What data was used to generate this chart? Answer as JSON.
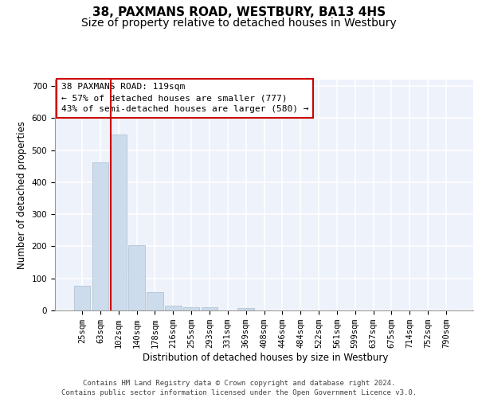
{
  "title": "38, PAXMANS ROAD, WESTBURY, BA13 4HS",
  "subtitle": "Size of property relative to detached houses in Westbury",
  "xlabel": "Distribution of detached houses by size in Westbury",
  "ylabel": "Number of detached properties",
  "bar_color": "#ccdcec",
  "bar_edgecolor": "#aabccc",
  "background_color": "#eef2fb",
  "grid_color": "#ffffff",
  "categories": [
    "25sqm",
    "63sqm",
    "102sqm",
    "140sqm",
    "178sqm",
    "216sqm",
    "255sqm",
    "293sqm",
    "331sqm",
    "369sqm",
    "408sqm",
    "446sqm",
    "484sqm",
    "522sqm",
    "561sqm",
    "599sqm",
    "637sqm",
    "675sqm",
    "714sqm",
    "752sqm",
    "790sqm"
  ],
  "values": [
    78,
    462,
    548,
    204,
    57,
    15,
    10,
    9,
    0,
    8,
    0,
    0,
    0,
    0,
    0,
    0,
    0,
    0,
    0,
    0,
    0
  ],
  "vline_x": 1.58,
  "vline_color": "#cc0000",
  "annotation_text": "38 PAXMANS ROAD: 119sqm\n← 57% of detached houses are smaller (777)\n43% of semi-detached houses are larger (580) →",
  "annotation_box_color": "#ffffff",
  "annotation_border_color": "#cc0000",
  "ylim": [
    0,
    720
  ],
  "yticks": [
    0,
    100,
    200,
    300,
    400,
    500,
    600,
    700
  ],
  "footer_text": "Contains HM Land Registry data © Crown copyright and database right 2024.\nContains public sector information licensed under the Open Government Licence v3.0.",
  "title_fontsize": 11,
  "subtitle_fontsize": 10,
  "axis_label_fontsize": 8.5,
  "tick_fontsize": 7.5,
  "annotation_fontsize": 8,
  "footer_fontsize": 6.5
}
